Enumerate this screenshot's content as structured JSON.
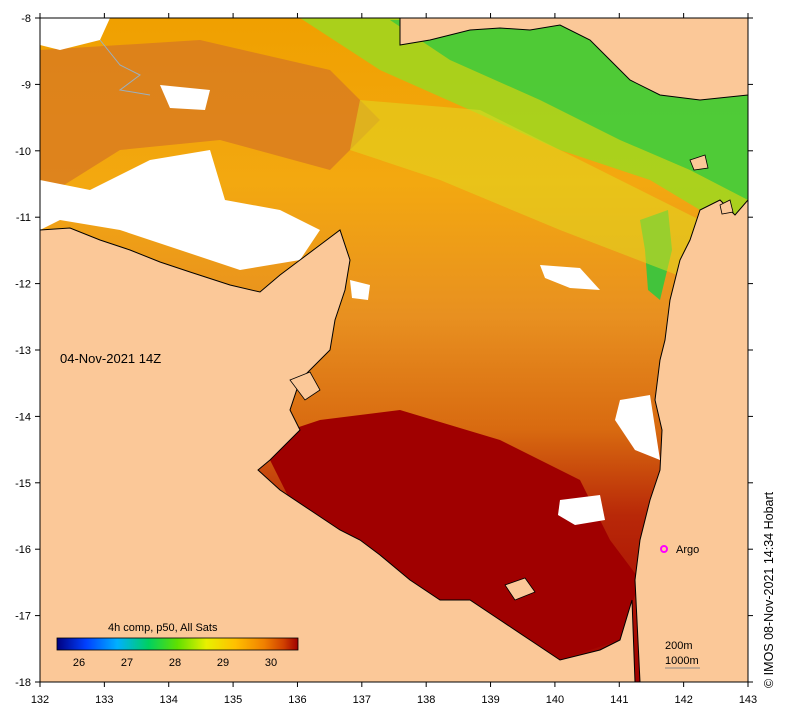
{
  "map": {
    "date_label": "04-Nov-2021 14Z",
    "lon_ticks": [
      "132",
      "133",
      "134",
      "135",
      "136",
      "137",
      "138",
      "139",
      "140",
      "141",
      "142",
      "143"
    ],
    "lat_ticks": [
      "-8",
      "-9",
      "-10",
      "-11",
      "-12",
      "-13",
      "-14",
      "-15",
      "-16",
      "-17",
      "-18"
    ],
    "colorbar": {
      "title": "4h comp, p50, All Sats",
      "tick_labels": [
        "26",
        "27",
        "28",
        "29",
        "30"
      ],
      "colors": [
        "#000080",
        "#0040ff",
        "#00b0ff",
        "#00d060",
        "#60e000",
        "#e8f000",
        "#ffc000",
        "#f08000",
        "#d04000",
        "#a00000"
      ]
    },
    "argo": {
      "label": "Argo",
      "color": "#ff00ff"
    },
    "scale": {
      "line1": "200m",
      "line2": "1000m"
    },
    "credit": "© IMOS 08-Nov-2021 14:34 Hobart",
    "colors": {
      "land": "#fbc898",
      "coast": "#000000",
      "no_data": "#ffffff",
      "frame": "#000000"
    }
  }
}
